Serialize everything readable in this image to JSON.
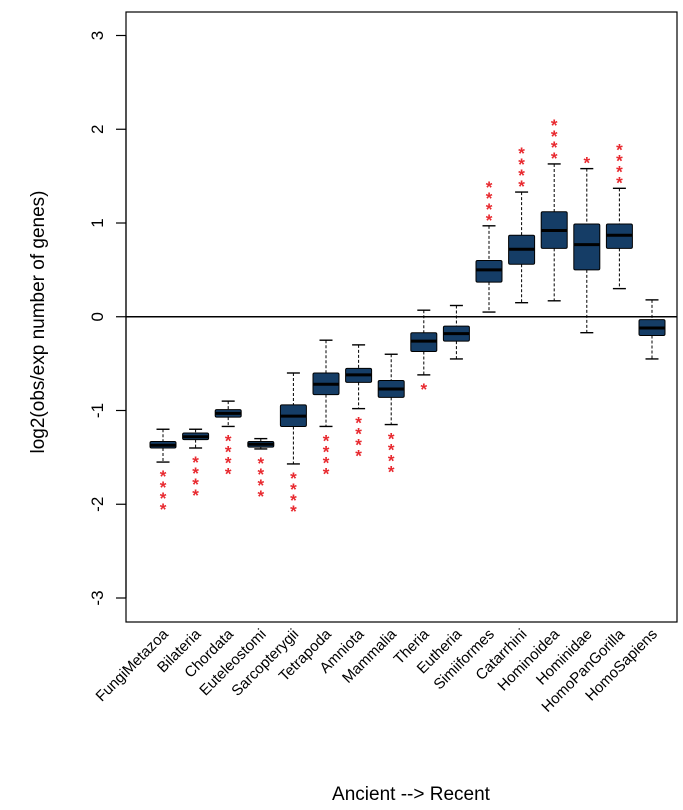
{
  "chart_data": {
    "type": "box",
    "ylabel": "log2(obs/exp number of genes)",
    "xlabel": "Ancient --> Recent",
    "ylim": [
      -3.3,
      3.3
    ],
    "yticks": [
      -3,
      -2,
      -1,
      0,
      1,
      2,
      3
    ],
    "reference_line": 0,
    "grid": false,
    "colors": {
      "box": "#153d66",
      "significance": "#e8292f",
      "line": "#000000"
    },
    "categories": [
      "FungiMetazoa",
      "Bilateria",
      "Chordata",
      "Euteleostomi",
      "Sarcopterygii",
      "Tetrapoda",
      "Amniota",
      "Mammalia",
      "Theria",
      "Eutheria",
      "Simiiformes",
      "Catarrhini",
      "Hominoidea",
      "Hominidae",
      "HomoPanGorilla",
      "HomoSapiens"
    ],
    "boxes": [
      {
        "min": -1.55,
        "q1": -1.4,
        "median": -1.37,
        "q3": -1.33,
        "max": -1.2,
        "significance": "****"
      },
      {
        "min": -1.4,
        "q1": -1.31,
        "median": -1.28,
        "q3": -1.24,
        "max": -1.2,
        "significance": "****"
      },
      {
        "min": -1.17,
        "q1": -1.07,
        "median": -1.03,
        "q3": -0.99,
        "max": -0.9,
        "significance": "****"
      },
      {
        "min": -1.41,
        "q1": -1.39,
        "median": -1.36,
        "q3": -1.33,
        "max": -1.3,
        "significance": "****"
      },
      {
        "min": -1.57,
        "q1": -1.17,
        "median": -1.06,
        "q3": -0.94,
        "max": -0.6,
        "significance": "****"
      },
      {
        "min": -1.17,
        "q1": -0.83,
        "median": -0.72,
        "q3": -0.6,
        "max": -0.25,
        "significance": "****"
      },
      {
        "min": -0.98,
        "q1": -0.7,
        "median": -0.62,
        "q3": -0.55,
        "max": -0.3,
        "significance": "****"
      },
      {
        "min": -1.15,
        "q1": -0.86,
        "median": -0.77,
        "q3": -0.68,
        "max": -0.4,
        "significance": "****"
      },
      {
        "min": -0.62,
        "q1": -0.37,
        "median": -0.26,
        "q3": -0.17,
        "max": 0.07,
        "significance": "*"
      },
      {
        "min": -0.45,
        "q1": -0.26,
        "median": -0.18,
        "q3": -0.1,
        "max": 0.12,
        "significance": ""
      },
      {
        "min": 0.05,
        "q1": 0.37,
        "median": 0.5,
        "q3": 0.6,
        "max": 0.97,
        "significance": "****"
      },
      {
        "min": 0.15,
        "q1": 0.56,
        "median": 0.72,
        "q3": 0.87,
        "max": 1.33,
        "significance": "****"
      },
      {
        "min": 0.17,
        "q1": 0.73,
        "median": 0.92,
        "q3": 1.12,
        "max": 1.63,
        "significance": "****"
      },
      {
        "min": -0.17,
        "q1": 0.5,
        "median": 0.77,
        "q3": 0.99,
        "max": 1.58,
        "significance": "*"
      },
      {
        "min": 0.3,
        "q1": 0.73,
        "median": 0.87,
        "q3": 0.99,
        "max": 1.37,
        "significance": "****"
      },
      {
        "min": -0.45,
        "q1": -0.2,
        "median": -0.12,
        "q3": -0.03,
        "max": 0.18,
        "significance": ""
      }
    ]
  }
}
